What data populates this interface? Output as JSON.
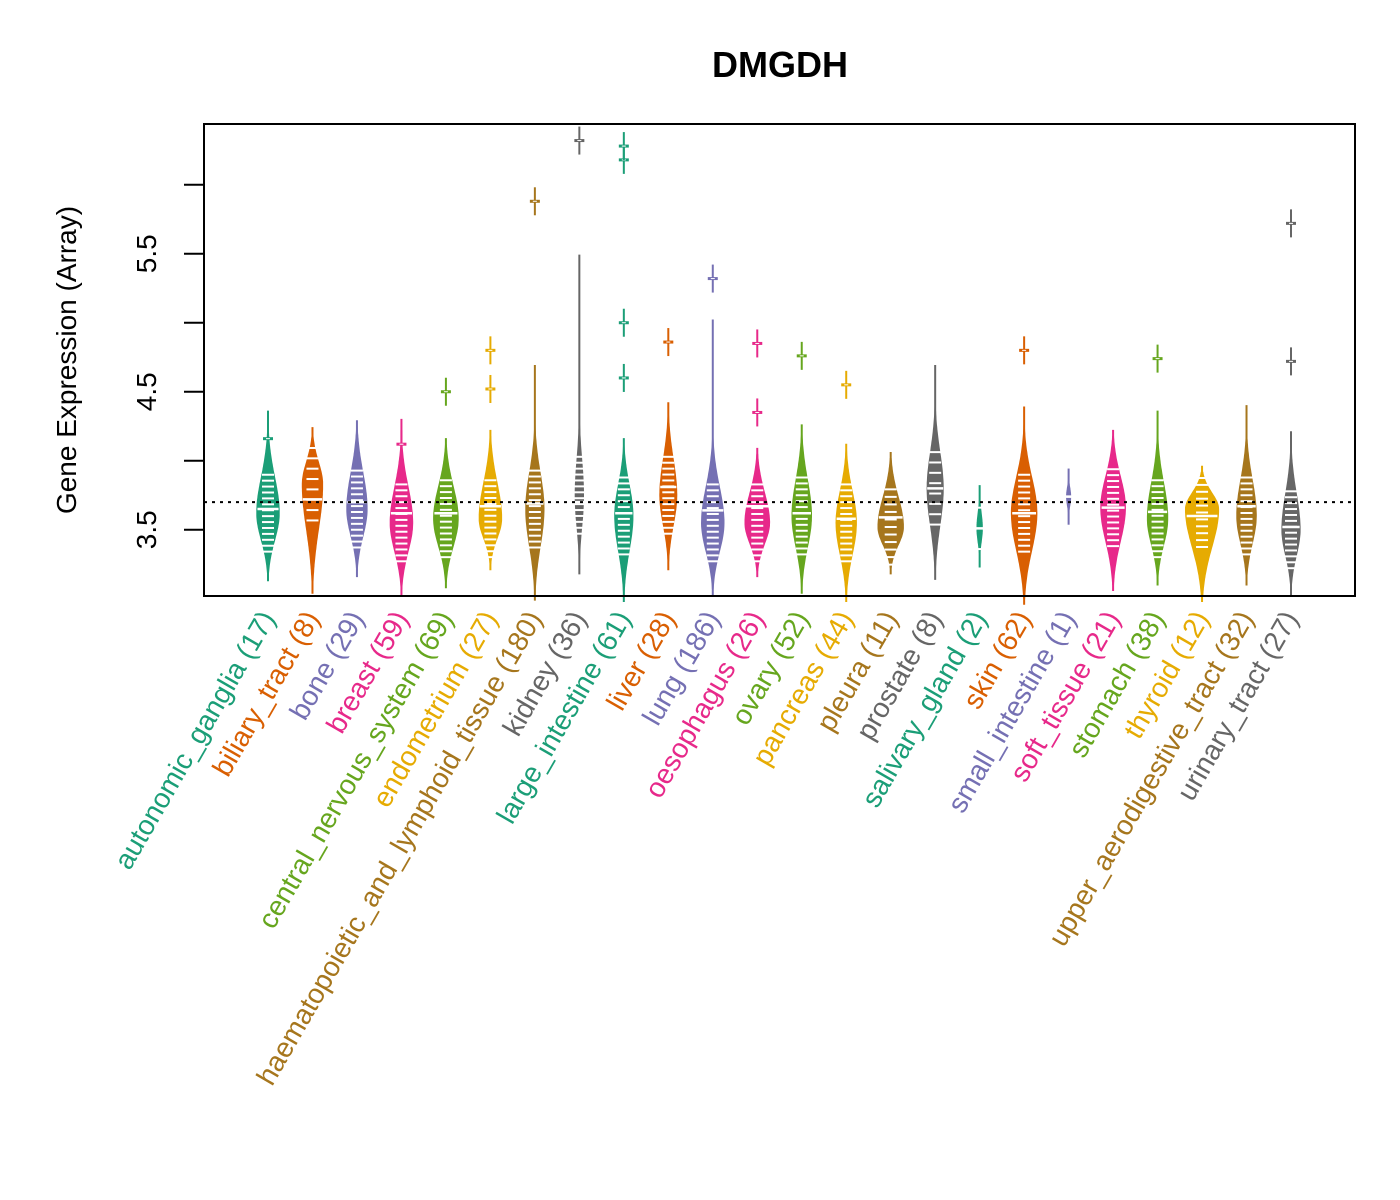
{
  "chart_data": {
    "type": "beanplot",
    "title": "DMGDH",
    "xlabel": "",
    "ylabel": "Gene Expression (Array)",
    "ylim": [
      3.02,
      6.44
    ],
    "yticks": [
      3.5,
      4.0,
      4.5,
      5.0,
      5.5,
      6.0
    ],
    "ytick_labels": [
      "3.5",
      "",
      "4.5",
      "",
      "5.5",
      ""
    ],
    "reference_line": 3.7,
    "grid": false,
    "legend": "none",
    "categories": [
      {
        "name": "autonomic_ganglia",
        "n": 17,
        "label": "autonomic_ganglia (17)",
        "color": "#1B9E77",
        "min": 3.17,
        "max": 4.32,
        "median": 3.65,
        "peak": 3.62,
        "width": 0.55,
        "outliers": [
          4.16
        ]
      },
      {
        "name": "biliary_tract",
        "n": 8,
        "label": "biliary_tract (8)",
        "color": "#D95F02",
        "min": 3.08,
        "max": 4.2,
        "median": 3.72,
        "peak": 3.83,
        "width": 0.5,
        "outliers": []
      },
      {
        "name": "bone",
        "n": 29,
        "label": "bone (29)",
        "color": "#7570B3",
        "min": 3.2,
        "max": 4.25,
        "median": 3.7,
        "peak": 3.65,
        "width": 0.5,
        "outliers": []
      },
      {
        "name": "breast",
        "n": 59,
        "label": "breast (59)",
        "color": "#E7298A",
        "min": 3.07,
        "max": 4.26,
        "median": 3.62,
        "peak": 3.55,
        "width": 0.55,
        "outliers": [
          4.12
        ]
      },
      {
        "name": "central_nervous_system",
        "n": 69,
        "label": "central_nervous_system (69)",
        "color": "#66A61E",
        "min": 3.12,
        "max": 4.12,
        "median": 3.62,
        "peak": 3.58,
        "width": 0.6,
        "outliers": [
          4.5
        ]
      },
      {
        "name": "endometrium",
        "n": 27,
        "label": "endometrium (27)",
        "color": "#E6AB02",
        "min": 3.25,
        "max": 4.18,
        "median": 3.67,
        "peak": 3.58,
        "width": 0.55,
        "outliers": [
          4.52,
          4.8
        ]
      },
      {
        "name": "haematopoietic_and_lymphoid_tissue",
        "n": 180,
        "label": "haematopoietic_and_lymphoid_tissue (180)",
        "color": "#A6761D",
        "min": 3.03,
        "max": 4.65,
        "median": 3.69,
        "peak": 3.65,
        "width": 0.45,
        "outliers": [
          5.88
        ]
      },
      {
        "name": "kidney",
        "n": 36,
        "label": "kidney (36)",
        "color": "#666666",
        "min": 3.22,
        "max": 5.45,
        "median": 3.7,
        "peak": 3.75,
        "width": 0.22,
        "outliers": [
          6.32
        ]
      },
      {
        "name": "large_intestine",
        "n": 61,
        "label": "large_intestine (61)",
        "color": "#1B9E77",
        "min": 3.02,
        "max": 4.12,
        "median": 3.62,
        "peak": 3.6,
        "width": 0.45,
        "outliers": [
          4.6,
          5.0,
          6.18,
          6.28
        ]
      },
      {
        "name": "liver",
        "n": 28,
        "label": "liver (28)",
        "color": "#D95F02",
        "min": 3.25,
        "max": 4.38,
        "median": 3.81,
        "peak": 3.75,
        "width": 0.42,
        "outliers": [
          4.86
        ]
      },
      {
        "name": "lung",
        "n": 186,
        "label": "lung (186)",
        "color": "#7570B3",
        "min": 3.07,
        "max": 4.98,
        "median": 3.64,
        "peak": 3.55,
        "width": 0.55,
        "outliers": [
          5.32
        ]
      },
      {
        "name": "oesophagus",
        "n": 26,
        "label": "oesophagus (26)",
        "color": "#E7298A",
        "min": 3.2,
        "max": 4.05,
        "median": 3.67,
        "peak": 3.55,
        "width": 0.6,
        "outliers": [
          4.35,
          4.85
        ]
      },
      {
        "name": "ovary",
        "n": 52,
        "label": "ovary (52)",
        "color": "#66A61E",
        "min": 3.08,
        "max": 4.22,
        "median": 3.62,
        "peak": 3.6,
        "width": 0.48,
        "outliers": [
          4.76
        ]
      },
      {
        "name": "pancreas",
        "n": 44,
        "label": "pancreas (44)",
        "color": "#E6AB02",
        "min": 3.02,
        "max": 4.08,
        "median": 3.58,
        "peak": 3.55,
        "width": 0.5,
        "outliers": [
          4.55
        ]
      },
      {
        "name": "pleura",
        "n": 11,
        "label": "pleura (11)",
        "color": "#A6761D",
        "min": 3.22,
        "max": 4.02,
        "median": 3.59,
        "peak": 3.52,
        "width": 0.62,
        "outliers": []
      },
      {
        "name": "prostate",
        "n": 8,
        "label": "prostate (8)",
        "color": "#666666",
        "min": 3.18,
        "max": 4.65,
        "median": 3.8,
        "peak": 3.8,
        "width": 0.4,
        "outliers": []
      },
      {
        "name": "salivary_gland",
        "n": 2,
        "label": "salivary_gland (2)",
        "color": "#1B9E77",
        "min": 3.27,
        "max": 3.78,
        "median": 3.51,
        "peak": 3.51,
        "width": 0.15,
        "outliers": []
      },
      {
        "name": "skin",
        "n": 62,
        "label": "skin (62)",
        "color": "#D95F02",
        "min": 3.0,
        "max": 4.35,
        "median": 3.62,
        "peak": 3.62,
        "width": 0.62,
        "outliers": [
          4.8
        ]
      },
      {
        "name": "small_intestine",
        "n": 1,
        "label": "small_intestine (1)",
        "color": "#7570B3",
        "min": 3.58,
        "max": 3.9,
        "median": 3.74,
        "peak": 3.74,
        "width": 0.12,
        "outliers": []
      },
      {
        "name": "soft_tissue",
        "n": 21,
        "label": "soft_tissue (21)",
        "color": "#E7298A",
        "min": 3.1,
        "max": 4.18,
        "median": 3.66,
        "peak": 3.66,
        "width": 0.6,
        "outliers": []
      },
      {
        "name": "stomach",
        "n": 38,
        "label": "stomach (38)",
        "color": "#66A61E",
        "min": 3.14,
        "max": 4.32,
        "median": 3.63,
        "peak": 3.58,
        "width": 0.5,
        "outliers": [
          4.74
        ]
      },
      {
        "name": "thyroid",
        "n": 12,
        "label": "thyroid (12)",
        "color": "#E6AB02",
        "min": 3.02,
        "max": 3.92,
        "median": 3.6,
        "peak": 3.65,
        "width": 0.8,
        "outliers": []
      },
      {
        "name": "upper_aerodigestive_tract",
        "n": 32,
        "label": "upper_aerodigestive_tract (32)",
        "color": "#A6761D",
        "min": 3.14,
        "max": 4.36,
        "median": 3.67,
        "peak": 3.6,
        "width": 0.48,
        "outliers": []
      },
      {
        "name": "urinary_tract",
        "n": 27,
        "label": "urinary_tract (27)",
        "color": "#666666",
        "min": 3.07,
        "max": 4.17,
        "median": 3.52,
        "peak": 3.5,
        "width": 0.45,
        "outliers": [
          4.72,
          5.72
        ]
      }
    ]
  }
}
